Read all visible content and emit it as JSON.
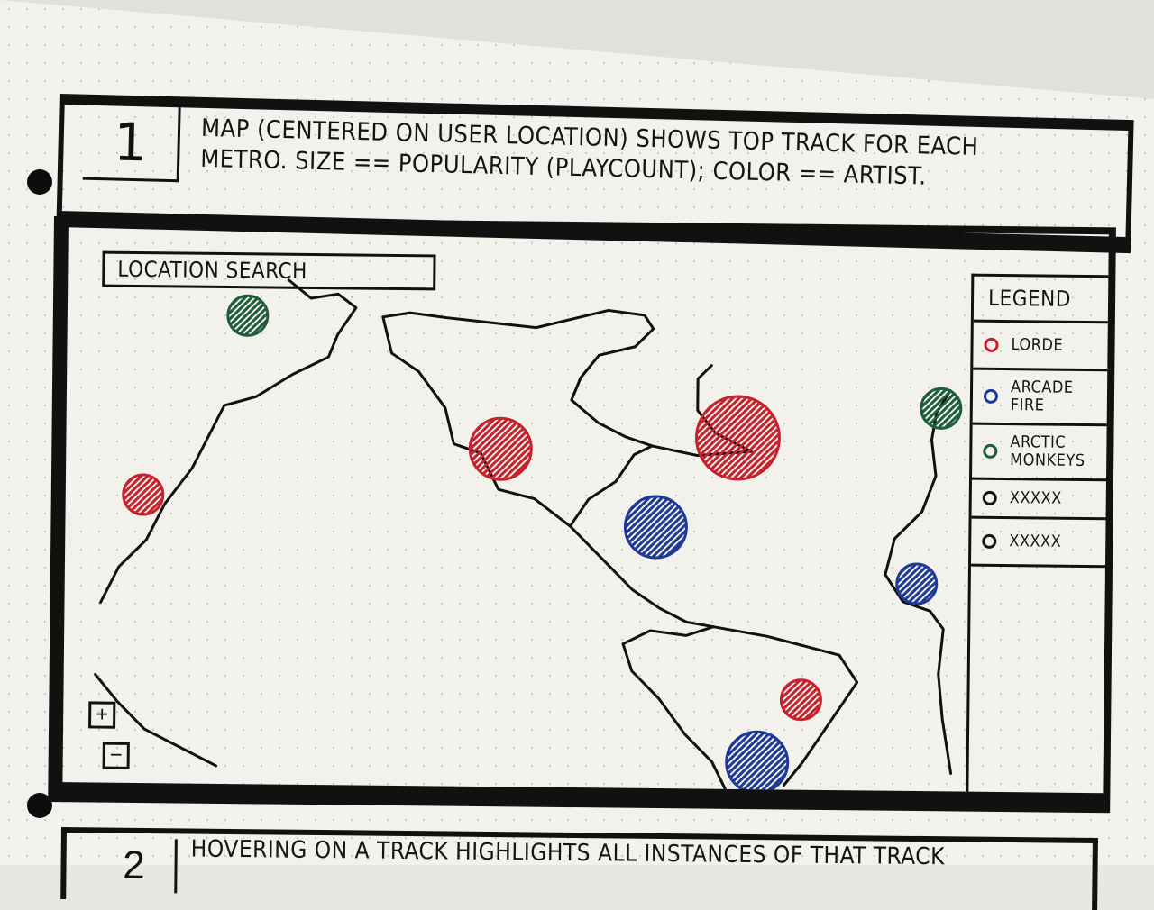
{
  "step": {
    "number": "1",
    "description_line1": "MAP (CENTERED ON USER LOCATION) SHOWS TOP TRACK FOR EACH",
    "description_line2": "METRO. SIZE == POPULARITY (PLAYCOUNT); COLOR == ARTIST."
  },
  "map": {
    "search_placeholder": "LOCATION SEARCH",
    "zoom_in_label": "+",
    "zoom_out_label": "−",
    "markers": [
      {
        "artist": "ARCTIC MONKEYS",
        "color": "#1f5e3a",
        "size": "small"
      },
      {
        "artist": "LORDE",
        "color": "#c6222e",
        "size": "small"
      },
      {
        "artist": "LORDE",
        "color": "#c6222e",
        "size": "medium"
      },
      {
        "artist": "LORDE",
        "color": "#c6222e",
        "size": "large"
      },
      {
        "artist": "ARCADE FIRE",
        "color": "#1d3a96",
        "size": "medium"
      },
      {
        "artist": "ARCTIC MONKEYS",
        "color": "#1f5e3a",
        "size": "small"
      },
      {
        "artist": "ARCADE FIRE",
        "color": "#1d3a96",
        "size": "small"
      },
      {
        "artist": "LORDE",
        "color": "#c6222e",
        "size": "small"
      },
      {
        "artist": "ARCADE FIRE",
        "color": "#1d3a96",
        "size": "medium"
      }
    ]
  },
  "legend": {
    "title": "LEGEND",
    "items": [
      {
        "label": "LORDE",
        "color": "#c6222e"
      },
      {
        "label": "ARCADE\nFIRE",
        "color": "#1d3a96"
      },
      {
        "label": "ARCTIC\nMONKEYS",
        "color": "#1f5e3a"
      },
      {
        "label": "XXXXX",
        "color": "#141414"
      },
      {
        "label": "XXXXX",
        "color": "#141414"
      }
    ]
  },
  "next_step": {
    "number": "2",
    "description": "HOVERING ON A TRACK HIGHLIGHTS ALL INSTANCES OF THAT TRACK"
  }
}
